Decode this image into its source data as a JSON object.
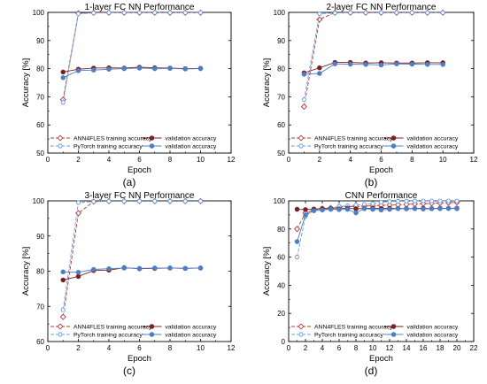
{
  "colors": {
    "ann_train": "#b33a3a",
    "pytorch_train": "#6a9fe0",
    "ann_val": "#7a2222",
    "pytorch_val": "#4d7fc4",
    "axis": "#000000"
  },
  "chart_data": [
    {
      "type": "line",
      "panel_label": "(a)",
      "title": "1-layer FC NN Performance",
      "xlabel": "Epoch",
      "ylabel": "Accuracy [%]",
      "xlim": [
        0,
        12
      ],
      "ylim": [
        50,
        100
      ],
      "xticks": [
        0,
        2,
        4,
        6,
        8,
        10,
        12
      ],
      "yticks": [
        50,
        60,
        70,
        80,
        90,
        100
      ],
      "legend_position": "bottom",
      "x": [
        1,
        2,
        3,
        4,
        5,
        6,
        7,
        8,
        9,
        10
      ],
      "series": [
        {
          "name": "ANN4FLES training accuracy",
          "style": "ann_train",
          "values": [
            69,
            99.7,
            99.9,
            99.9,
            99.9,
            99.9,
            99.9,
            99.9,
            99.9,
            99.9
          ]
        },
        {
          "name": "PyTorch training accuracy",
          "style": "pytorch_train",
          "values": [
            68,
            99.5,
            99.8,
            99.9,
            99.9,
            99.9,
            99.9,
            99.9,
            99.9,
            99.9
          ]
        },
        {
          "name": "validation accuracy",
          "style": "ann_val",
          "values": [
            78.8,
            79.8,
            80.2,
            80.3,
            80.2,
            80.5,
            80.3,
            80.2,
            80,
            80.1
          ]
        },
        {
          "name": "validation accuracy",
          "style": "pytorch_val",
          "values": [
            76.8,
            79.3,
            79.5,
            79.8,
            80.0,
            80.2,
            80.0,
            80.1,
            79.9,
            80.0
          ]
        }
      ]
    },
    {
      "type": "line",
      "panel_label": "(b)",
      "title": "2-layer FC NN Performance",
      "xlabel": "Epoch",
      "ylabel": "Accuracy [%]",
      "xlim": [
        0,
        12
      ],
      "ylim": [
        50,
        100
      ],
      "xticks": [
        0,
        2,
        4,
        6,
        8,
        10,
        12
      ],
      "yticks": [
        50,
        60,
        70,
        80,
        90,
        100
      ],
      "legend_position": "bottom",
      "x": [
        1,
        2,
        3,
        4,
        5,
        6,
        7,
        8,
        9,
        10
      ],
      "series": [
        {
          "name": "ANN4FLES training accuracy",
          "style": "ann_train",
          "values": [
            66.5,
            97.5,
            99.9,
            99.9,
            99.9,
            99.9,
            99.9,
            99.9,
            99.9,
            99.9
          ]
        },
        {
          "name": "PyTorch training accuracy",
          "style": "pytorch_train",
          "values": [
            69,
            99.5,
            99.8,
            99.9,
            99.9,
            99.9,
            99.9,
            99.9,
            99.9,
            99.9
          ]
        },
        {
          "name": "validation accuracy",
          "style": "ann_val",
          "values": [
            78.5,
            80.3,
            82.2,
            82.2,
            82.0,
            82.1,
            82.0,
            82.0,
            82.1,
            82.1
          ]
        },
        {
          "name": "validation accuracy",
          "style": "pytorch_val",
          "values": [
            78.0,
            78.3,
            81.7,
            81.6,
            81.5,
            81.3,
            81.7,
            81.6,
            81.5,
            81.5
          ]
        }
      ]
    },
    {
      "type": "line",
      "panel_label": "(c)",
      "title": "3-layer FC NN Performance",
      "xlabel": "Epoch",
      "ylabel": "Accuracy [%]",
      "xlim": [
        0,
        12
      ],
      "ylim": [
        60,
        100
      ],
      "xticks": [
        0,
        2,
        4,
        6,
        8,
        10,
        12
      ],
      "yticks": [
        60,
        70,
        80,
        90,
        100
      ],
      "legend_position": "bottom",
      "x": [
        1,
        2,
        3,
        4,
        5,
        6,
        7,
        8,
        9,
        10
      ],
      "series": [
        {
          "name": "ANN4FLES training accuracy",
          "style": "ann_train",
          "values": [
            67,
            96.5,
            99.8,
            99.9,
            99.9,
            99.9,
            99.9,
            99.9,
            99.9,
            99.9
          ]
        },
        {
          "name": "PyTorch training accuracy",
          "style": "pytorch_train",
          "values": [
            69,
            99.5,
            99.8,
            99.9,
            99.9,
            99.9,
            99.9,
            99.9,
            99.9,
            99.9
          ]
        },
        {
          "name": "validation accuracy",
          "style": "ann_val",
          "values": [
            77.5,
            78.5,
            80.2,
            80.3,
            81.0,
            80.7,
            80.8,
            80.9,
            80.8,
            80.9
          ]
        },
        {
          "name": "validation accuracy",
          "style": "pytorch_val",
          "values": [
            79.8,
            79.7,
            80.5,
            80.7,
            80.9,
            80.8,
            80.9,
            80.9,
            80.8,
            80.9
          ]
        }
      ]
    },
    {
      "type": "line",
      "panel_label": "(d)",
      "title": "CNN Performance",
      "xlabel": "Epoch",
      "ylabel": "Accuracy [%]",
      "xlim": [
        0,
        22
      ],
      "ylim": [
        0,
        100
      ],
      "xticks": [
        0,
        2,
        4,
        6,
        8,
        10,
        12,
        14,
        16,
        18,
        20,
        22
      ],
      "yticks": [
        0,
        20,
        40,
        60,
        80,
        100
      ],
      "legend_position": "bottom",
      "x": [
        1,
        2,
        3,
        4,
        5,
        6,
        7,
        8,
        9,
        10,
        11,
        12,
        13,
        14,
        15,
        16,
        17,
        18,
        19,
        20
      ],
      "series": [
        {
          "name": "ANN4FLES training accuracy",
          "style": "ann_train",
          "values": [
            80,
            91.5,
            93.5,
            94.5,
            95,
            95.5,
            96,
            96,
            96.3,
            96.5,
            96.8,
            97,
            97.2,
            97.5,
            97.8,
            98,
            98.2,
            98.5,
            98.7,
            99
          ]
        },
        {
          "name": "PyTorch training accuracy",
          "style": "pytorch_train",
          "values": [
            60,
            89,
            93.5,
            94,
            95,
            96,
            96.5,
            97,
            97.5,
            98,
            99,
            99.5,
            99.7,
            99.8,
            99.9,
            99.9,
            99.9,
            99.9,
            99.9,
            99.9
          ]
        },
        {
          "name": "validation accuracy",
          "style": "ann_val",
          "values": [
            94,
            93.8,
            94.2,
            94.5,
            94.5,
            94.3,
            94.8,
            94.3,
            94.7,
            94.7,
            94.5,
            94.7,
            94.6,
            94.5,
            94.6,
            94.7,
            94.5,
            94.8,
            94.7,
            94.8
          ]
        },
        {
          "name": "validation accuracy",
          "style": "pytorch_val",
          "values": [
            71,
            90,
            93,
            93.5,
            94,
            93.8,
            94,
            91.5,
            94.5,
            94,
            93.5,
            94,
            94.5,
            94.3,
            94.5,
            94.2,
            94.5,
            94.5,
            94.6,
            94.5
          ]
        }
      ]
    }
  ]
}
